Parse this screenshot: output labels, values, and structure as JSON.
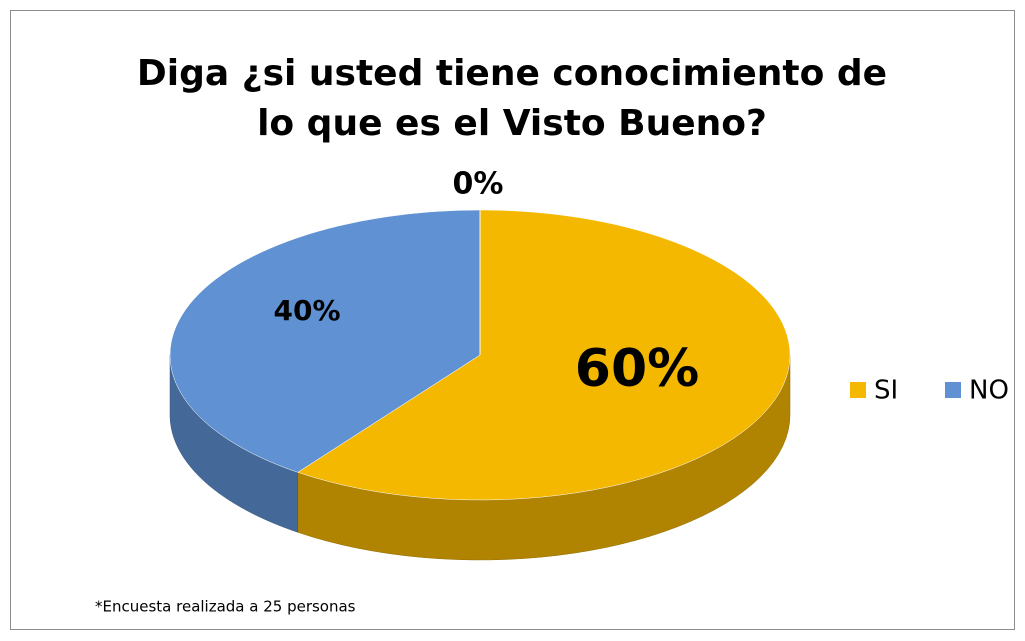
{
  "chart_data": {
    "type": "pie",
    "title": "Diga ¿si usted tiene conocimiento de lo que es el Visto Bueno?",
    "categories": [
      "SI",
      "NO",
      null
    ],
    "values": [
      60,
      40,
      0
    ],
    "value_labels": [
      "60%",
      "40%",
      "0%"
    ],
    "colors": [
      "#f5b800",
      "#5f91d3",
      "#a5a5a5"
    ],
    "legend": "right",
    "note": "*Encuesta realizada a 25 personas"
  }
}
